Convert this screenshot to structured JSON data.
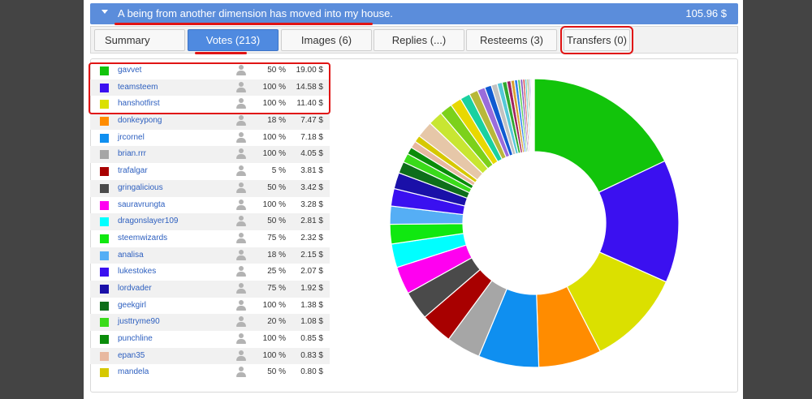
{
  "post": {
    "title": "A being from another dimension has moved into my house.",
    "payout": "105.96 $"
  },
  "tabs": [
    {
      "label": "Summary"
    },
    {
      "label": "Votes (213)"
    },
    {
      "label": "Images (6)"
    },
    {
      "label": "Replies (...)"
    },
    {
      "label": "Resteems (3)"
    },
    {
      "label": "Transfers (0)"
    }
  ],
  "votes": [
    {
      "voter": "gavvet",
      "percent": "50 %",
      "value": "19.00 $",
      "color": "#12c40b"
    },
    {
      "voter": "teamsteem",
      "percent": "100 %",
      "value": "14.58 $",
      "color": "#3b10f0"
    },
    {
      "voter": "hanshotfirst",
      "percent": "100 %",
      "value": "11.40 $",
      "color": "#dbe000"
    },
    {
      "voter": "donkeypong",
      "percent": "18 %",
      "value": "7.47 $",
      "color": "#ff8c00"
    },
    {
      "voter": "jrcornel",
      "percent": "100 %",
      "value": "7.18 $",
      "color": "#0f8ff0"
    },
    {
      "voter": "brian.rrr",
      "percent": "100 %",
      "value": "4.05 $",
      "color": "#a6a6a6"
    },
    {
      "voter": "trafalgar",
      "percent": "5 %",
      "value": "3.81 $",
      "color": "#a80000"
    },
    {
      "voter": "gringalicious",
      "percent": "50 %",
      "value": "3.42 $",
      "color": "#4a4a4a"
    },
    {
      "voter": "sauravrungta",
      "percent": "100 %",
      "value": "3.28 $",
      "color": "#ff00f0"
    },
    {
      "voter": "dragonslayer109",
      "percent": "50 %",
      "value": "2.81 $",
      "color": "#00ffff"
    },
    {
      "voter": "steemwizards",
      "percent": "75 %",
      "value": "2.32 $",
      "color": "#10e810"
    },
    {
      "voter": "analisa",
      "percent": "18 %",
      "value": "2.15 $",
      "color": "#55aef5"
    },
    {
      "voter": "lukestokes",
      "percent": "25 %",
      "value": "2.07 $",
      "color": "#3a10f0"
    },
    {
      "voter": "lordvader",
      "percent": "75 %",
      "value": "1.92 $",
      "color": "#1a10a8"
    },
    {
      "voter": "geekgirl",
      "percent": "100 %",
      "value": "1.38 $",
      "color": "#0e6e1a"
    },
    {
      "voter": "justtryme90",
      "percent": "20 %",
      "value": "1.08 $",
      "color": "#3adb1a"
    },
    {
      "voter": "punchline",
      "percent": "100 %",
      "value": "0.85 $",
      "color": "#0a8c0a"
    },
    {
      "voter": "epan35",
      "percent": "100 %",
      "value": "0.83 $",
      "color": "#e8b8a0"
    },
    {
      "voter": "mandela",
      "percent": "50 %",
      "value": "0.80 $",
      "color": "#d6c800"
    }
  ],
  "chart_data": {
    "type": "pie",
    "subtype": "donut",
    "categories": [
      "gavvet",
      "teamsteem",
      "hanshotfirst",
      "donkeypong",
      "jrcornel",
      "brian.rrr",
      "trafalgar",
      "gringalicious",
      "sauravrungta",
      "dragonslayer109",
      "steemwizards",
      "analisa",
      "lukestokes",
      "lordvader",
      "geekgirl",
      "justtryme90",
      "punchline",
      "epan35",
      "mandela"
    ],
    "values": [
      19.0,
      14.58,
      11.4,
      7.47,
      7.18,
      4.05,
      3.81,
      3.42,
      3.28,
      2.81,
      2.32,
      2.15,
      2.07,
      1.92,
      1.38,
      1.08,
      0.85,
      0.83,
      0.8
    ],
    "total": 105.96,
    "remaining_small_slices_colors": [
      "#e6c7a8",
      "#c8e632",
      "#7cd11a",
      "#e8d800",
      "#1ad1a0",
      "#b8b83a",
      "#9a6cdb",
      "#0f5ad1",
      "#c2c2c2",
      "#55c8d8",
      "#30a830",
      "#a02060",
      "#d8a030",
      "#3080f0",
      "#60d060",
      "#8050c0",
      "#d04040",
      "#40c0c0",
      "#a0a040",
      "#6060a0",
      "#b0b0ff",
      "#ffb0b0",
      "#b0ffb0",
      "#d0d0d0"
    ]
  }
}
